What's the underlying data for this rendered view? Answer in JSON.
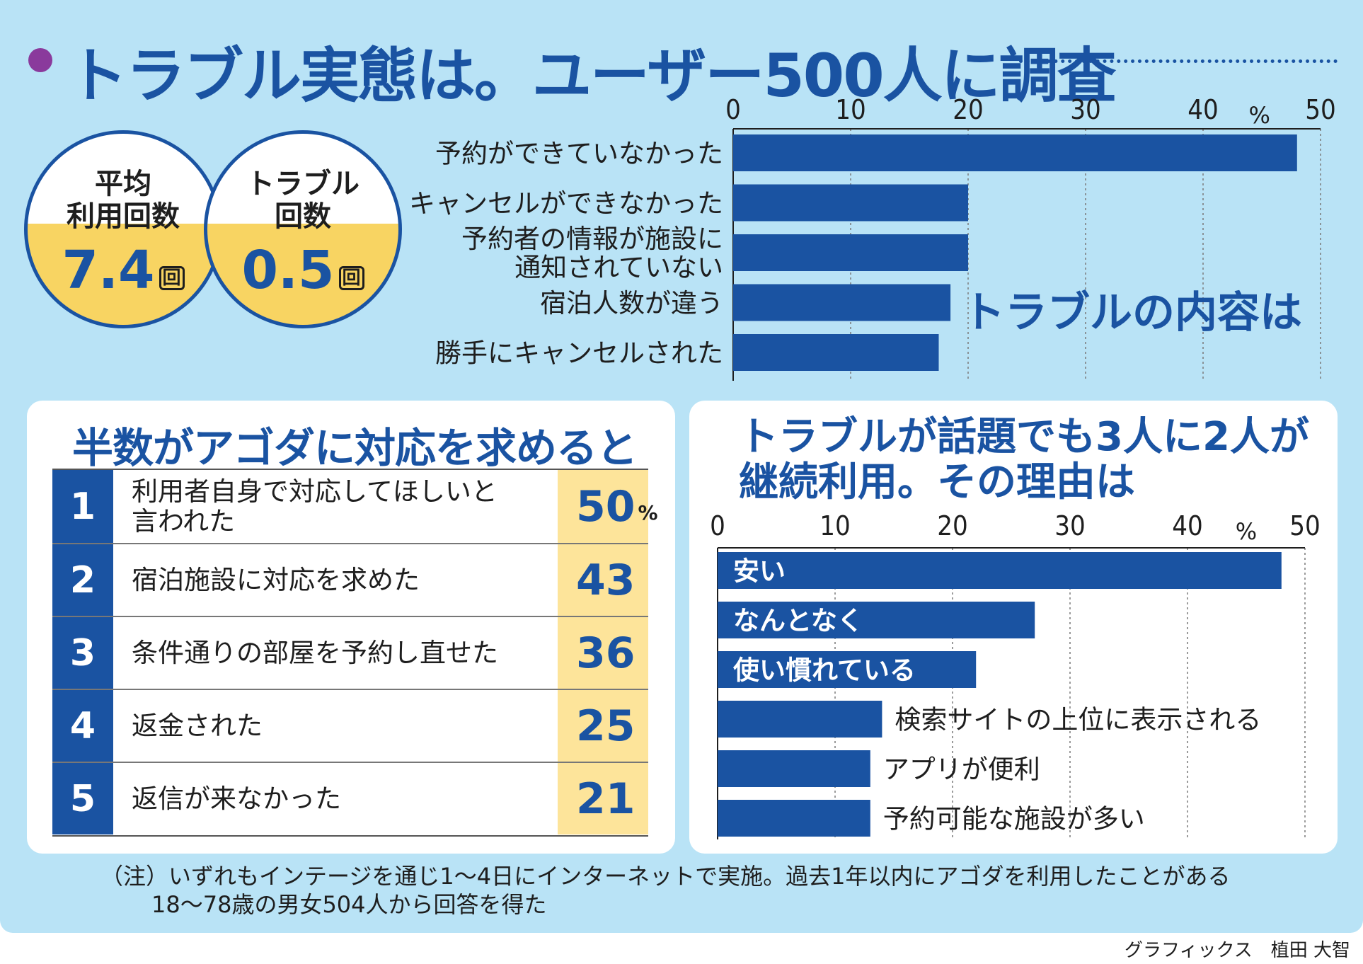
{
  "title": "トラブル実態は。ユーザー500人に調査",
  "stats": [
    {
      "label": "平均\n利用回数",
      "value": "7.4",
      "unit": "回"
    },
    {
      "label": "トラブル\n回数",
      "value": "0.5",
      "unit": "回"
    }
  ],
  "chart_data": [
    {
      "type": "bar",
      "orientation": "horizontal",
      "title": "トラブルの内容は",
      "unit_label": "%",
      "xlim": [
        0,
        50
      ],
      "ticks": [
        "0",
        "10",
        "20",
        "30",
        "40",
        "50"
      ],
      "categories": [
        "予約ができていなかった",
        "キャンセルができなかった",
        "予約者の情報が施設に\n通知されていない",
        "宿泊人数が違う",
        "勝手にキャンセルされた"
      ],
      "values": [
        48,
        20,
        20,
        18.5,
        17.5
      ]
    },
    {
      "type": "bar",
      "orientation": "horizontal",
      "title": "トラブルが話題でも3人に2人が\n継続利用。その理由は",
      "unit_label": "%",
      "xlim": [
        0,
        50
      ],
      "ticks": [
        "0",
        "10",
        "20",
        "30",
        "40",
        "50"
      ],
      "categories": [
        "安い",
        "なんとなく",
        "使い慣れている",
        "検索サイトの上位に表示される",
        "アプリが便利",
        "予約可能な施設が多い"
      ],
      "values": [
        48,
        27,
        22,
        14,
        13,
        13
      ]
    },
    {
      "type": "table",
      "title": "半数がアゴダに対応を求めると",
      "unit": "%",
      "rows": [
        {
          "rank": "1",
          "label": "利用者自身で対応してほしいと\n言われた",
          "value": "50"
        },
        {
          "rank": "2",
          "label": "宿泊施設に対応を求めた",
          "value": "43"
        },
        {
          "rank": "3",
          "label": "条件通りの部屋を予約し直せた",
          "value": "36"
        },
        {
          "rank": "4",
          "label": "返金された",
          "value": "25"
        },
        {
          "rank": "5",
          "label": "返信が来なかった",
          "value": "21"
        }
      ]
    }
  ],
  "note_line1": "（注）いずれもインテージを通じ1～4日にインターネットで実施。過去1年以内にアゴダを利用したことがある",
  "note_line2": "18～78歳の男女504人から回答を得た",
  "credit": "グラフィックス　植田 大智",
  "colors": {
    "background": "#b9e3f6",
    "navy": "#1a53a2",
    "yellow": "#f8d462",
    "purple": "#8a3a9c"
  }
}
